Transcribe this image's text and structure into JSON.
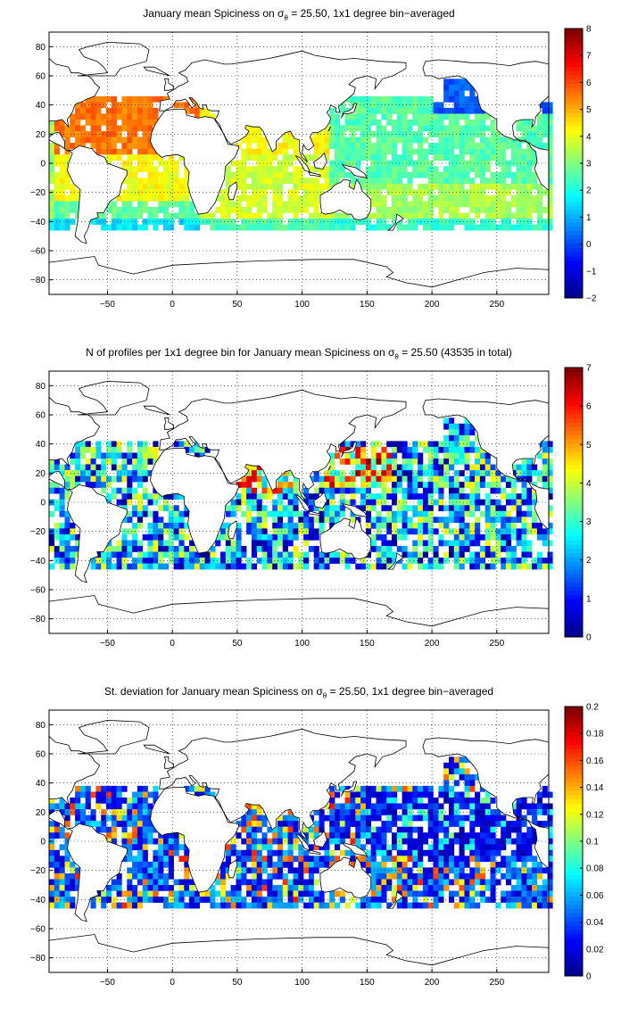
{
  "colors": {
    "jet": [
      "#00008f",
      "#0000ff",
      "#0080ff",
      "#00ffff",
      "#80ff80",
      "#ffff00",
      "#ff8000",
      "#ff0000",
      "#800000"
    ],
    "land_outline": "#000000",
    "grid": "#000000"
  },
  "panels": [
    {
      "title_prefix": "January mean Spiciness on ",
      "sigma_symbol": "σ",
      "sigma_sub": "θ",
      "title_suffix": " = 25.50, 1x1 degree bin−averaged",
      "colorbar_ticks": [
        "8",
        "7",
        "6",
        "5",
        "4",
        "3",
        "2",
        "1",
        "0",
        "−1",
        "−2"
      ]
    },
    {
      "title_prefix": "N of profiles per 1x1 degree bin for January mean Spiciness on ",
      "sigma_symbol": "σ",
      "sigma_sub": "θ",
      "title_suffix": " = 25.50 (43535 in total)",
      "colorbar_ticks": [
        "7",
        "6",
        "5",
        "4",
        "3",
        "2",
        "1",
        "0"
      ]
    },
    {
      "title_prefix": "St. deviation for January mean Spiciness on ",
      "sigma_symbol": "σ",
      "sigma_sub": "θ",
      "title_suffix": " = 25.50, 1x1 degree bin−averaged",
      "colorbar_ticks": [
        "0.2",
        "0.18",
        "0.16",
        "0.14",
        "0.12",
        "0.1",
        "0.08",
        "0.06",
        "0.04",
        "0.02",
        "0"
      ]
    }
  ],
  "axes": {
    "x_ticks": [
      "−50",
      "0",
      "50",
      "100",
      "150",
      "200",
      "250"
    ],
    "y_ticks": [
      "80",
      "60",
      "40",
      "20",
      "0",
      "−20",
      "−40",
      "−60",
      "−80"
    ]
  }
}
